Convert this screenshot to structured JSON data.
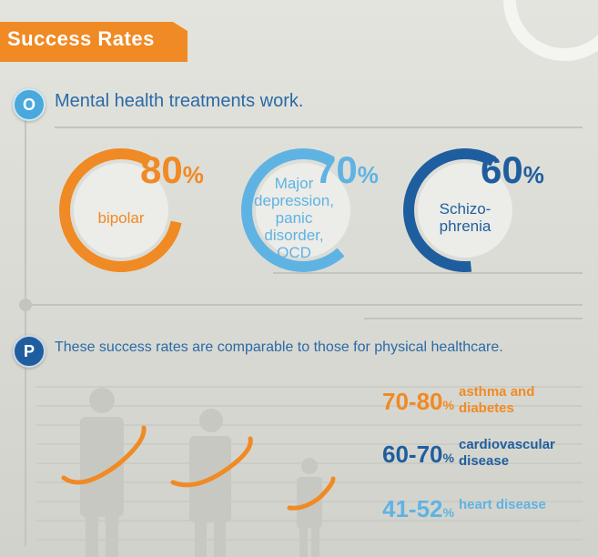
{
  "colors": {
    "orange": "#f08a24",
    "light_blue": "#5fb3e3",
    "dark_blue": "#1f5e9e",
    "heading_blue": "#2a6aa6"
  },
  "header": {
    "title": "Success Rates"
  },
  "section_o": {
    "badge": "O",
    "heading": "Mental health treatments work.",
    "items": [
      {
        "percent": "80",
        "percent_sign": "%",
        "label_lines": [
          "bipolar"
        ],
        "value": 0.8,
        "color": "orange"
      },
      {
        "percent": "70",
        "percent_sign": "%",
        "label_lines": [
          "Major",
          "depression,",
          "panic",
          "disorder,",
          "OCD"
        ],
        "value": 0.7,
        "color": "light_blue"
      },
      {
        "percent": "60",
        "percent_sign": "%",
        "label_lines": [
          "Schizo-",
          "phrenia"
        ],
        "value": 0.6,
        "color": "dark_blue"
      }
    ]
  },
  "section_p": {
    "badge": "P",
    "heading": "These success rates are comparable to those for physical healthcare.",
    "items": [
      {
        "range": "70-80",
        "percent_sign": "%",
        "label_lines": [
          "asthma and",
          "diabetes"
        ],
        "color": "orange"
      },
      {
        "range": "60-70",
        "percent_sign": "%",
        "label_lines": [
          "cardiovascular",
          "disease"
        ],
        "color": "dark_blue"
      },
      {
        "range": "41-52",
        "percent_sign": "%",
        "label_lines": [
          "heart disease"
        ],
        "color": "light_blue"
      }
    ]
  }
}
